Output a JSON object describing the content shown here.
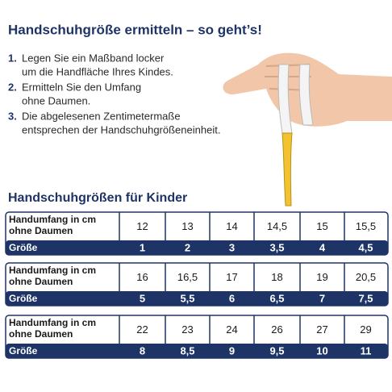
{
  "header": {
    "title": "Handschuhgröße ermitteln – so geht’s!"
  },
  "steps": [
    {
      "number": "1.",
      "lines": [
        "Legen Sie ein Maßband locker",
        "um die Handfläche Ihres Kindes."
      ]
    },
    {
      "number": "2.",
      "lines": [
        "Ermitteln Sie den Umfang",
        "ohne Daumen."
      ]
    },
    {
      "number": "3.",
      "lines": [
        "Die abgelesenen Zentimetermaße",
        "entsprechen der Handschuhgrößeneinheit."
      ]
    }
  ],
  "table": {
    "title": "Handschuhgrößen für Kinder",
    "blocks": [
      {
        "label_lines": [
          "Handumfang in cm",
          "ohne Daumen"
        ],
        "circumference": [
          "12",
          "13",
          "14",
          "14,5",
          "15",
          "15,5"
        ],
        "size_label": "Größe",
        "sizes": [
          "1",
          "2",
          "3",
          "3,5",
          "4",
          "4,5"
        ]
      },
      {
        "label_lines": [
          "Handumfang in cm",
          "ohne Daumen"
        ],
        "circumference": [
          "16",
          "16,5",
          "17",
          "18",
          "19",
          "20,5"
        ],
        "size_label": "Größe",
        "sizes": [
          "5",
          "5,5",
          "6",
          "6,5",
          "7",
          "7,5"
        ]
      },
      {
        "label_lines": [
          "Handumfang in cm",
          "ohne Daumen"
        ],
        "circumference": [
          "22",
          "23",
          "24",
          "26",
          "27",
          "29"
        ],
        "size_label": "Größe",
        "sizes": [
          "8",
          "8,5",
          "9",
          "9,5",
          "10",
          "11"
        ]
      }
    ]
  }
}
